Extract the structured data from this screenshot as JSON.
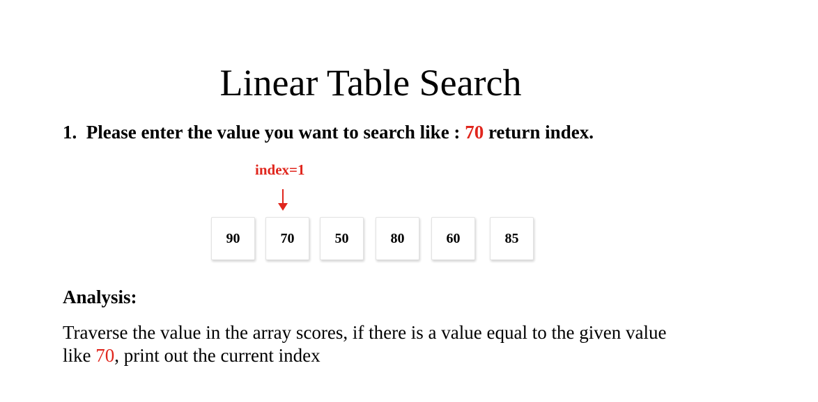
{
  "title": "Linear Table Search",
  "question": {
    "number": "1.",
    "text_before": "Please enter the value you want to search like : ",
    "highlight_value": "70",
    "text_after": " return index."
  },
  "diagram": {
    "index_label": "index=1",
    "pointer_icon": "down-arrow-icon",
    "values": [
      "90",
      "70",
      "50",
      "80",
      "60",
      "85"
    ],
    "highlight_index": 1
  },
  "analysis": {
    "heading": "Analysis:",
    "body_before": "Traverse the value in the array scores, if there is a value equal to the given value like ",
    "highlight_value": "70",
    "body_after": ", print out the current index"
  },
  "colors": {
    "highlight": "#e0261d",
    "text": "#000000"
  }
}
